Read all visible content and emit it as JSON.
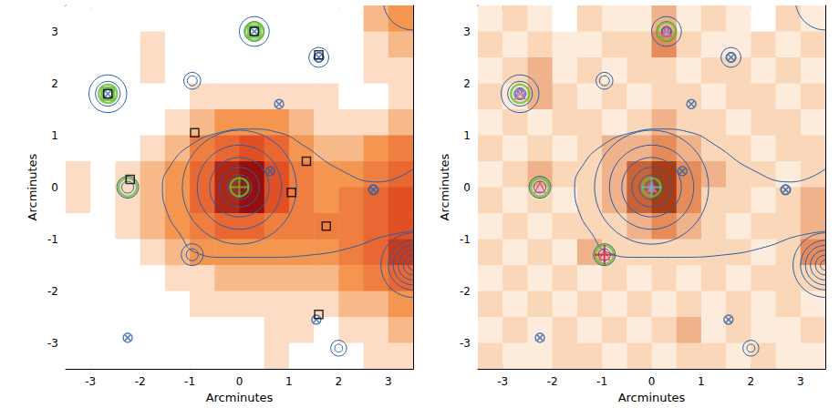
{
  "chart_data": [
    {
      "type": "heatmap",
      "xlabel": "Arcminutes",
      "ylabel": "Arcminutes",
      "xlim": [
        -3.5,
        3.5
      ],
      "ylim": [
        -3.5,
        3.5
      ],
      "xticks": [
        -3,
        -2,
        -1,
        0,
        1,
        2,
        3
      ],
      "yticks": [
        -3,
        -2,
        -1,
        0,
        1,
        2,
        3
      ],
      "grid": false,
      "image": {
        "x": [
          -3.25,
          -2.75,
          -2.25,
          -1.75,
          -1.25,
          -0.75,
          -0.25,
          0.25,
          0.75,
          1.25,
          1.75,
          2.25,
          2.75,
          3.25
        ],
        "y": [
          3.25,
          2.75,
          2.25,
          1.75,
          1.25,
          0.75,
          0.25,
          -0.25,
          -0.75,
          -1.25,
          -1.75,
          -2.25,
          -2.75,
          -3.25
        ],
        "cells": [
          [
            0,
            0,
            0,
            0,
            0,
            0,
            0,
            0,
            0,
            0,
            0,
            0,
            2,
            3
          ],
          [
            0,
            0,
            0,
            1,
            0,
            0,
            0,
            0,
            0,
            0,
            0,
            0,
            1,
            2
          ],
          [
            0,
            0,
            0,
            1,
            0,
            0,
            0,
            0,
            0,
            0,
            0,
            0,
            1,
            1
          ],
          [
            0,
            0,
            0,
            0,
            0,
            1,
            1,
            1,
            1,
            1,
            1,
            0,
            0,
            1
          ],
          [
            0,
            0,
            0,
            0,
            1,
            2,
            3,
            3,
            3,
            2,
            1,
            1,
            1,
            2
          ],
          [
            0,
            0,
            0,
            1,
            2,
            4,
            5,
            6,
            5,
            3,
            2,
            2,
            3,
            4
          ],
          [
            1,
            0,
            1,
            2,
            3,
            5,
            8,
            9,
            6,
            4,
            3,
            3,
            4,
            5
          ],
          [
            1,
            0,
            1,
            2,
            3,
            5,
            8,
            9,
            6,
            4,
            3,
            4,
            5,
            6
          ],
          [
            0,
            0,
            1,
            2,
            3,
            4,
            5,
            5,
            4,
            4,
            4,
            4,
            5,
            6
          ],
          [
            0,
            0,
            0,
            1,
            2,
            3,
            3,
            3,
            3,
            3,
            3,
            4,
            5,
            7
          ],
          [
            0,
            0,
            0,
            0,
            1,
            1,
            2,
            2,
            2,
            2,
            2,
            3,
            4,
            5
          ],
          [
            0,
            0,
            0,
            0,
            0,
            1,
            1,
            1,
            1,
            1,
            1,
            2,
            2,
            3
          ],
          [
            0,
            0,
            0,
            0,
            0,
            0,
            0,
            0,
            1,
            1,
            0,
            1,
            1,
            2
          ],
          [
            0,
            0,
            0,
            0,
            0,
            0,
            0,
            0,
            1,
            0,
            0,
            0,
            1,
            1
          ]
        ]
      },
      "contours": [
        {
          "center": [
            0,
            0
          ],
          "radii": [
            0.12,
            0.25,
            0.4,
            0.6,
            0.85,
            1.15
          ]
        },
        {
          "center": [
            0.3,
            3.0
          ],
          "radii": [
            0.1,
            0.2,
            0.3
          ]
        },
        {
          "center": [
            1.6,
            2.5
          ],
          "radii": [
            0.1,
            0.2
          ]
        },
        {
          "center": [
            -2.65,
            1.8
          ],
          "radii": [
            0.12,
            0.25,
            0.38
          ]
        },
        {
          "center": [
            -0.95,
            2.05
          ],
          "radii": [
            0.1,
            0.17
          ]
        },
        {
          "center": [
            -2.25,
            0.0
          ],
          "radii": [
            0.12,
            0.22
          ]
        },
        {
          "center": [
            2.7,
            -0.05
          ],
          "radii": [
            0.1
          ]
        },
        {
          "center": [
            -0.95,
            -1.3
          ],
          "radii": [
            0.12,
            0.22
          ]
        },
        {
          "center": [
            2.0,
            -3.1
          ],
          "radii": [
            0.08,
            0.16
          ]
        },
        {
          "center": [
            3.5,
            -1.5
          ],
          "radii": [
            0.1,
            0.2,
            0.3,
            0.4,
            0.5,
            0.65
          ]
        },
        {
          "center": [
            3.5,
            3.6
          ],
          "radii": [
            0.6
          ]
        }
      ],
      "contour_path": {
        "x": [
          3.5,
          2.8,
          2.0,
          1.3,
          0.8,
          0.2,
          -0.4,
          -1.0,
          -1.4,
          -1.55,
          -1.45,
          -1.2,
          -0.9,
          -0.3,
          0.5,
          1.5,
          2.3,
          2.9,
          3.5
        ],
        "y": [
          0.35,
          0.1,
          0.35,
          0.8,
          1.05,
          1.12,
          1.05,
          0.8,
          0.4,
          0.0,
          -0.5,
          -0.9,
          -1.25,
          -1.35,
          -1.35,
          -1.3,
          -1.15,
          -0.95,
          -0.85
        ]
      },
      "series": [
        {
          "marker": "circled_x",
          "color": "#2a5fa8",
          "x": [
            0.3,
            1.6,
            -2.65,
            0.8,
            0.62,
            2.7,
            1.55,
            -2.25
          ],
          "y": [
            3.0,
            2.5,
            1.8,
            1.6,
            0.31,
            -0.05,
            -2.55,
            -2.9
          ]
        },
        {
          "marker": "circle",
          "color": "#6abf2e",
          "x": [
            0,
            -2.25,
            -2.65,
            0.3
          ],
          "y": [
            0,
            0.0,
            1.8,
            3.0
          ]
        },
        {
          "marker": "plus",
          "color": "#6abf2e",
          "x": [
            0
          ],
          "y": [
            0
          ]
        },
        {
          "marker": "square",
          "color": "#6abf2e",
          "x": [
            -2.65,
            0.3
          ],
          "y": [
            1.8,
            3.0
          ]
        },
        {
          "marker": "square",
          "color": "#000000",
          "x": [
            -2.65,
            0.3,
            1.6,
            -0.9,
            -2.2,
            1.35,
            1.05,
            1.75,
            1.6
          ],
          "y": [
            1.8,
            3.0,
            2.55,
            1.05,
            0.15,
            0.5,
            -0.1,
            -0.75,
            -2.45
          ]
        }
      ]
    },
    {
      "type": "heatmap",
      "xlabel": "Arcminutes",
      "ylabel": "Arcminutes",
      "xlim": [
        -3.5,
        3.5
      ],
      "ylim": [
        -3.5,
        3.5
      ],
      "xticks": [
        -3,
        -2,
        -1,
        0,
        1,
        2,
        3
      ],
      "yticks": [
        -3,
        -2,
        -1,
        0,
        1,
        2,
        3
      ],
      "grid": false,
      "image": {
        "x": [
          -3.25,
          -2.75,
          -2.25,
          -1.75,
          -1.25,
          -0.75,
          -0.25,
          0.25,
          0.75,
          1.25,
          1.75,
          2.25,
          2.75,
          3.25
        ],
        "y": [
          3.25,
          2.75,
          2.25,
          1.75,
          1.25,
          0.75,
          0.25,
          -0.25,
          -0.75,
          -1.25,
          -1.75,
          -2.25,
          -2.75,
          -3.25
        ],
        "cells": [
          [
            1,
            2,
            1,
            0,
            2,
            1,
            1,
            3,
            1,
            2,
            1,
            0,
            2,
            1
          ],
          [
            2,
            1,
            2,
            1,
            1,
            2,
            2,
            4,
            2,
            1,
            1,
            2,
            1,
            2
          ],
          [
            1,
            2,
            3,
            1,
            2,
            1,
            2,
            2,
            1,
            2,
            2,
            1,
            2,
            1
          ],
          [
            2,
            1,
            3,
            2,
            1,
            2,
            1,
            2,
            2,
            1,
            2,
            2,
            1,
            2
          ],
          [
            1,
            2,
            1,
            2,
            2,
            1,
            2,
            3,
            2,
            2,
            1,
            2,
            2,
            1
          ],
          [
            2,
            1,
            2,
            1,
            2,
            3,
            3,
            4,
            3,
            2,
            2,
            1,
            2,
            2
          ],
          [
            1,
            2,
            3,
            2,
            2,
            3,
            5,
            6,
            4,
            3,
            2,
            2,
            1,
            2
          ],
          [
            2,
            1,
            2,
            1,
            2,
            3,
            5,
            6,
            4,
            2,
            2,
            1,
            2,
            3
          ],
          [
            1,
            2,
            1,
            2,
            2,
            2,
            3,
            4,
            3,
            2,
            1,
            2,
            2,
            3
          ],
          [
            2,
            1,
            2,
            1,
            3,
            2,
            2,
            2,
            2,
            2,
            2,
            1,
            2,
            4
          ],
          [
            1,
            2,
            1,
            2,
            1,
            2,
            1,
            2,
            1,
            2,
            1,
            2,
            2,
            2
          ],
          [
            2,
            1,
            2,
            1,
            2,
            1,
            2,
            1,
            2,
            1,
            2,
            1,
            2,
            1
          ],
          [
            1,
            2,
            1,
            2,
            1,
            2,
            1,
            2,
            3,
            1,
            2,
            1,
            1,
            2
          ],
          [
            2,
            1,
            1,
            2,
            2,
            1,
            2,
            1,
            2,
            2,
            1,
            2,
            1,
            1
          ]
        ]
      },
      "contours": [
        {
          "center": [
            0,
            0
          ],
          "radii": [
            0.12,
            0.25,
            0.4,
            0.6,
            0.85,
            1.15
          ]
        },
        {
          "center": [
            0.3,
            3.0
          ],
          "radii": [
            0.1,
            0.2,
            0.3
          ]
        },
        {
          "center": [
            1.6,
            2.5
          ],
          "radii": [
            0.1,
            0.2
          ]
        },
        {
          "center": [
            -2.65,
            1.8
          ],
          "radii": [
            0.12,
            0.25,
            0.38
          ]
        },
        {
          "center": [
            -0.95,
            2.05
          ],
          "radii": [
            0.1,
            0.17
          ]
        },
        {
          "center": [
            -2.25,
            0.0
          ],
          "radii": [
            0.12,
            0.22
          ]
        },
        {
          "center": [
            2.7,
            -0.05
          ],
          "radii": [
            0.1
          ]
        },
        {
          "center": [
            -0.95,
            -1.3
          ],
          "radii": [
            0.12,
            0.22
          ]
        },
        {
          "center": [
            2.0,
            -3.1
          ],
          "radii": [
            0.08,
            0.16
          ]
        },
        {
          "center": [
            3.5,
            -1.5
          ],
          "radii": [
            0.1,
            0.2,
            0.3,
            0.4,
            0.5,
            0.65
          ]
        },
        {
          "center": [
            3.5,
            3.6
          ],
          "radii": [
            0.6
          ]
        }
      ],
      "contour_path": {
        "x": [
          3.5,
          2.8,
          2.0,
          1.3,
          0.8,
          0.2,
          -0.4,
          -1.0,
          -1.4,
          -1.55,
          -1.45,
          -1.2,
          -0.9,
          -0.3,
          0.5,
          1.5,
          2.3,
          2.9,
          3.5
        ],
        "y": [
          0.35,
          0.1,
          0.35,
          0.8,
          1.05,
          1.12,
          1.05,
          0.8,
          0.4,
          0.0,
          -0.5,
          -0.9,
          -1.25,
          -1.35,
          -1.35,
          -1.3,
          -1.15,
          -0.95,
          -0.85
        ]
      },
      "series": [
        {
          "marker": "circled_x",
          "color": "#2a5fa8",
          "x": [
            0.3,
            1.6,
            -2.65,
            0.8,
            0.62,
            2.7,
            1.55,
            -2.25
          ],
          "y": [
            3.0,
            2.5,
            1.8,
            1.6,
            0.31,
            -0.05,
            -2.55,
            -2.9
          ]
        },
        {
          "marker": "circle",
          "color": "#6abf2e",
          "x": [
            0,
            -2.25,
            -2.65,
            0.3,
            -0.95
          ],
          "y": [
            0,
            0.0,
            1.8,
            3.0,
            -1.3
          ]
        },
        {
          "marker": "triangle",
          "color": "#d0508a",
          "x": [
            0.3,
            -2.65,
            -2.25,
            -0.95,
            0
          ],
          "y": [
            3.0,
            1.8,
            0.0,
            -1.3,
            0
          ]
        },
        {
          "marker": "plus",
          "color": "#4fc3d9",
          "x": [
            0
          ],
          "y": [
            0
          ]
        },
        {
          "marker": "plus",
          "color": "#c8203a",
          "x": [
            -0.95
          ],
          "y": [
            -1.3
          ]
        }
      ]
    }
  ]
}
